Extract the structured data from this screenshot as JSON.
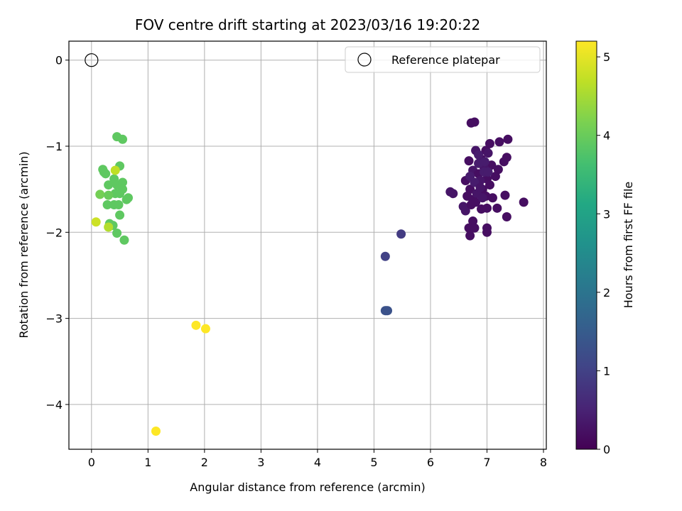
{
  "chart_data": {
    "type": "scatter",
    "title": "FOV centre drift starting at 2023/03/16 19:20:22",
    "xlabel": "Angular distance from reference (arcmin)",
    "ylabel": "Rotation from reference (arcmin)",
    "xlim": [
      -0.4,
      8.05
    ],
    "ylim": [
      -4.52,
      0.22
    ],
    "xticks": [
      0,
      1,
      2,
      3,
      4,
      5,
      6,
      7,
      8
    ],
    "yticks": [
      0,
      -1,
      -2,
      -3,
      -4
    ],
    "grid": true,
    "legend": {
      "placement": "top-right",
      "entries": [
        "Reference platepar"
      ]
    },
    "colorbar": {
      "label": "Hours from first FF file",
      "range": [
        0,
        5.2
      ],
      "ticks": [
        0,
        1,
        2,
        3,
        4,
        5
      ],
      "colormap": "viridis"
    },
    "reference_point": {
      "x": 0,
      "y": 0
    },
    "points": [
      [
        6.72,
        -0.73,
        0.2
      ],
      [
        6.78,
        -0.72,
        0.2
      ],
      [
        6.98,
        -1.05,
        0.2
      ],
      [
        7.05,
        -0.97,
        0.2
      ],
      [
        7.22,
        -0.95,
        0.2
      ],
      [
        7.37,
        -0.92,
        0.2
      ],
      [
        6.68,
        -1.17,
        0.2
      ],
      [
        6.8,
        -1.05,
        0.3
      ],
      [
        7.02,
        -1.08,
        0.3
      ],
      [
        6.9,
        -1.15,
        0.2
      ],
      [
        7.08,
        -1.22,
        0.2
      ],
      [
        7.3,
        -1.18,
        0.2
      ],
      [
        7.35,
        -1.13,
        0.2
      ],
      [
        7.2,
        -1.27,
        0.2
      ],
      [
        7.15,
        -1.35,
        0.2
      ],
      [
        6.75,
        -1.28,
        0.3
      ],
      [
        6.85,
        -1.32,
        0.2
      ],
      [
        6.95,
        -1.25,
        0.3
      ],
      [
        7.0,
        -1.38,
        0.2
      ],
      [
        6.62,
        -1.4,
        0.2
      ],
      [
        6.7,
        -1.5,
        0.2
      ],
      [
        6.88,
        -1.4,
        0.3
      ],
      [
        6.92,
        -1.5,
        0.2
      ],
      [
        7.05,
        -1.45,
        0.2
      ],
      [
        6.65,
        -1.58,
        0.2
      ],
      [
        6.75,
        -1.62,
        0.2
      ],
      [
        6.82,
        -1.55,
        0.3
      ],
      [
        6.98,
        -1.58,
        0.2
      ],
      [
        7.1,
        -1.6,
        0.2
      ],
      [
        7.32,
        -1.57,
        0.2
      ],
      [
        7.65,
        -1.65,
        0.2
      ],
      [
        6.35,
        -1.53,
        0.3
      ],
      [
        6.4,
        -1.55,
        0.3
      ],
      [
        6.58,
        -1.7,
        0.3
      ],
      [
        6.62,
        -1.75,
        0.3
      ],
      [
        6.72,
        -1.68,
        0.2
      ],
      [
        6.8,
        -1.65,
        0.2
      ],
      [
        6.9,
        -1.73,
        0.2
      ],
      [
        7.0,
        -1.72,
        0.2
      ],
      [
        7.18,
        -1.72,
        0.2
      ],
      [
        7.35,
        -1.82,
        0.2
      ],
      [
        6.75,
        -1.87,
        0.2
      ],
      [
        6.68,
        -1.95,
        0.2
      ],
      [
        6.78,
        -1.95,
        0.2
      ],
      [
        7.0,
        -1.95,
        0.2
      ],
      [
        6.7,
        -2.04,
        0.2
      ],
      [
        7.0,
        -2.0,
        0.2
      ],
      [
        6.85,
        -1.2,
        0.4
      ],
      [
        6.95,
        -1.3,
        0.4
      ],
      [
        6.78,
        -1.42,
        0.4
      ],
      [
        6.88,
        -1.48,
        0.3
      ],
      [
        6.92,
        -1.6,
        0.3
      ],
      [
        7.02,
        -1.3,
        0.4
      ],
      [
        6.7,
        -1.35,
        0.4
      ],
      [
        6.85,
        -1.1,
        0.4
      ],
      [
        6.96,
        -1.18,
        0.4
      ],
      [
        5.48,
        -2.02,
        0.9
      ],
      [
        5.2,
        -2.28,
        1.0
      ],
      [
        5.22,
        -2.91,
        1.3
      ],
      [
        5.2,
        -2.91,
        1.3
      ],
      [
        5.24,
        -2.91,
        1.3
      ],
      [
        0.45,
        -0.89,
        3.9
      ],
      [
        0.55,
        -0.92,
        3.9
      ],
      [
        0.2,
        -1.27,
        3.9
      ],
      [
        0.22,
        -1.3,
        3.9
      ],
      [
        0.25,
        -1.32,
        3.9
      ],
      [
        0.5,
        -1.23,
        3.9
      ],
      [
        0.3,
        -1.45,
        3.9
      ],
      [
        0.4,
        -1.38,
        3.9
      ],
      [
        0.45,
        -1.45,
        3.9
      ],
      [
        0.55,
        -1.42,
        3.9
      ],
      [
        0.42,
        -1.55,
        3.9
      ],
      [
        0.5,
        -1.55,
        3.9
      ],
      [
        0.55,
        -1.5,
        3.9
      ],
      [
        0.62,
        -1.62,
        3.9
      ],
      [
        0.65,
        -1.6,
        3.9
      ],
      [
        0.15,
        -1.56,
        4.1
      ],
      [
        0.3,
        -1.57,
        4.0
      ],
      [
        0.28,
        -1.68,
        3.9
      ],
      [
        0.4,
        -1.68,
        3.9
      ],
      [
        0.48,
        -1.68,
        3.9
      ],
      [
        0.5,
        -1.8,
        3.9
      ],
      [
        0.32,
        -1.9,
        3.9
      ],
      [
        0.38,
        -1.92,
        3.9
      ],
      [
        0.45,
        -2.01,
        3.9
      ],
      [
        0.58,
        -2.09,
        3.9
      ],
      [
        0.42,
        -1.28,
        4.7
      ],
      [
        0.08,
        -1.88,
        4.8
      ],
      [
        0.3,
        -1.94,
        4.6
      ],
      [
        1.85,
        -3.08,
        5.2
      ],
      [
        2.02,
        -3.12,
        5.2
      ],
      [
        1.14,
        -4.31,
        5.2
      ]
    ]
  }
}
